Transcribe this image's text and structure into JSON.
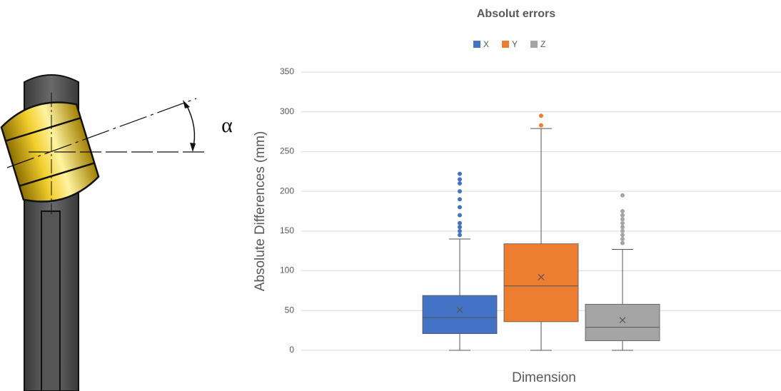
{
  "diagram": {
    "label": "α"
  },
  "chart_data": {
    "type": "box",
    "title": "Absolut errors",
    "x_label": "Dimension",
    "y_label": "Absolute Differences (mm)",
    "ylim": [
      0,
      350
    ],
    "yticks": [
      0,
      50,
      100,
      150,
      200,
      250,
      300,
      350
    ],
    "grid": true,
    "legend": "top",
    "series": [
      {
        "name": "X",
        "color": "#4472c4",
        "min": 0,
        "q1": 21,
        "median": 41,
        "q3": 69,
        "max": 140,
        "mean": 51,
        "outliers": [
          145,
          150,
          155,
          160,
          170,
          180,
          190,
          200,
          210,
          215,
          222
        ]
      },
      {
        "name": "Y",
        "color": "#ed7d31",
        "min": 0,
        "q1": 36,
        "median": 81,
        "q3": 134,
        "max": 279,
        "mean": 92,
        "outliers": [
          283,
          295
        ]
      },
      {
        "name": "Z",
        "color": "#a5a5a5",
        "min": 0,
        "q1": 12,
        "median": 29,
        "q3": 58,
        "max": 127,
        "mean": 38,
        "outliers": [
          135,
          140,
          145,
          150,
          155,
          160,
          165,
          170,
          175,
          195
        ]
      }
    ]
  }
}
